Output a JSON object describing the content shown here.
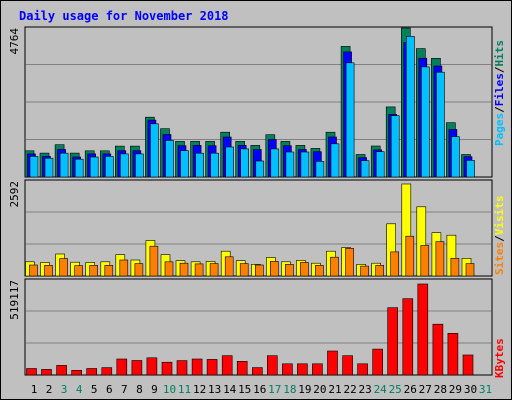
{
  "title": "Daily usage for November 2018",
  "colors": {
    "hits": "#00805c",
    "files": "#0000ff",
    "pages": "#00c0ff",
    "visits": "#ffff00",
    "sites": "#ff8000",
    "kbytes": "#ff0000",
    "title": "#0000ff",
    "weekday_label": "#000000",
    "weekend_label": "#00805c"
  },
  "legend": {
    "top": [
      {
        "text": "Pages",
        "color": "#00c0ff"
      },
      {
        "text": "Files",
        "color": "#0000ff"
      },
      {
        "text": "Hits",
        "color": "#00805c"
      }
    ],
    "mid": [
      {
        "text": "Sites",
        "color": "#ff8000"
      },
      {
        "text": "Visits",
        "color": "#ffff00"
      }
    ],
    "bottom": [
      {
        "text": "KBytes",
        "color": "#ff0000"
      }
    ]
  },
  "chart_data": {
    "type": "bar",
    "title": "Daily usage for November 2018",
    "x": [
      1,
      2,
      3,
      4,
      5,
      6,
      7,
      8,
      9,
      10,
      11,
      12,
      13,
      14,
      15,
      16,
      17,
      18,
      19,
      20,
      21,
      22,
      23,
      24,
      25,
      26,
      27,
      28,
      29,
      30,
      31
    ],
    "weekend_days": [
      3,
      4,
      10,
      11,
      17,
      18,
      24,
      25,
      31
    ],
    "panels": [
      {
        "name": "hits-files-pages",
        "ymax_label": "4764",
        "ymax": 4764,
        "series": [
          {
            "name": "Hits",
            "values": [
              838,
              763,
              1033,
              763,
              838,
              838,
              988,
              988,
              1911,
              1543,
              1137,
              1137,
              1137,
              1433,
              1137,
              1010,
              1353,
              1137,
              1010,
              913,
              1433,
              4175,
              718,
              990,
              2240,
              4764,
              4104,
              3796,
              1737,
              718,
              0
            ]
          },
          {
            "name": "Files",
            "values": [
              740,
              660,
              880,
              640,
              740,
              740,
              840,
              840,
              1820,
              1360,
              1000,
              1010,
              1000,
              1280,
              1010,
              880,
              1200,
              1000,
              880,
              810,
              1280,
              4000,
              620,
              870,
              2000,
              4300,
              3800,
              3550,
              1520,
              650,
              0
            ]
          },
          {
            "name": "Pages",
            "values": [
              660,
              600,
              760,
              570,
              640,
              660,
              740,
              740,
              1700,
              1170,
              840,
              760,
              760,
              960,
              900,
              510,
              900,
              800,
              800,
              500,
              1060,
              3650,
              520,
              810,
              1960,
              4500,
              3520,
              3350,
              1290,
              530,
              0
            ]
          }
        ]
      },
      {
        "name": "visits-sites",
        "ymax_label": "2592",
        "ymax": 2592,
        "series": [
          {
            "name": "Visits",
            "values": [
              400,
              380,
              620,
              390,
              380,
              400,
              600,
              450,
              1000,
              600,
              430,
              400,
              410,
              700,
              430,
              330,
              520,
              400,
              440,
              360,
              700,
              800,
              330,
              360,
              1470,
              2592,
              1950,
              1220,
              1150,
              500,
              0
            ]
          },
          {
            "name": "Sites",
            "values": [
              310,
              300,
              490,
              290,
              300,
              300,
              450,
              350,
              840,
              400,
              360,
              340,
              350,
              540,
              350,
              310,
              410,
              330,
              380,
              300,
              530,
              780,
              280,
              300,
              680,
              1120,
              860,
              970,
              500,
              350,
              0
            ]
          }
        ]
      },
      {
        "name": "kbytes",
        "ymax_label": "519117",
        "ymax": 519117,
        "series": [
          {
            "name": "KBytes",
            "values": [
              37000,
              32000,
              55000,
              27000,
              37000,
              42000,
              91000,
              83000,
              98000,
              73000,
              82000,
              91000,
              89000,
              110000,
              78000,
              42000,
              110000,
              64000,
              64000,
              64000,
              137000,
              110000,
              64000,
              148000,
              384000,
              435000,
              519117,
              290000,
              238000,
              114000,
              0
            ]
          }
        ]
      }
    ]
  }
}
